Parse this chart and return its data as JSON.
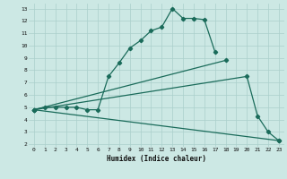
{
  "xlabel": "Humidex (Indice chaleur)",
  "bg_color": "#cce8e4",
  "grid_color": "#aacfcb",
  "line_color": "#1a6b5a",
  "xlim": [
    -0.5,
    23.5
  ],
  "ylim": [
    1.8,
    13.4
  ],
  "xticks": [
    0,
    1,
    2,
    3,
    4,
    5,
    6,
    7,
    8,
    9,
    10,
    11,
    12,
    13,
    14,
    15,
    16,
    17,
    18,
    19,
    20,
    21,
    22,
    23
  ],
  "yticks": [
    2,
    3,
    4,
    5,
    6,
    7,
    8,
    9,
    10,
    11,
    12,
    13
  ],
  "line1_x": [
    0,
    1,
    2,
    3,
    4,
    5,
    6,
    7,
    8,
    9,
    10,
    11,
    12,
    13,
    14,
    15,
    16,
    17
  ],
  "line1_y": [
    4.8,
    5.0,
    5.0,
    5.0,
    5.0,
    4.8,
    4.8,
    7.5,
    8.6,
    9.8,
    10.4,
    11.2,
    11.5,
    13.0,
    12.2,
    12.2,
    12.1,
    9.5
  ],
  "line2_x": [
    0,
    18
  ],
  "line2_y": [
    4.8,
    8.8
  ],
  "line3_x": [
    0,
    20,
    21,
    22,
    23
  ],
  "line3_y": [
    4.8,
    7.5,
    4.3,
    3.0,
    2.3
  ],
  "line4_x": [
    0,
    23
  ],
  "line4_y": [
    4.8,
    2.3
  ]
}
